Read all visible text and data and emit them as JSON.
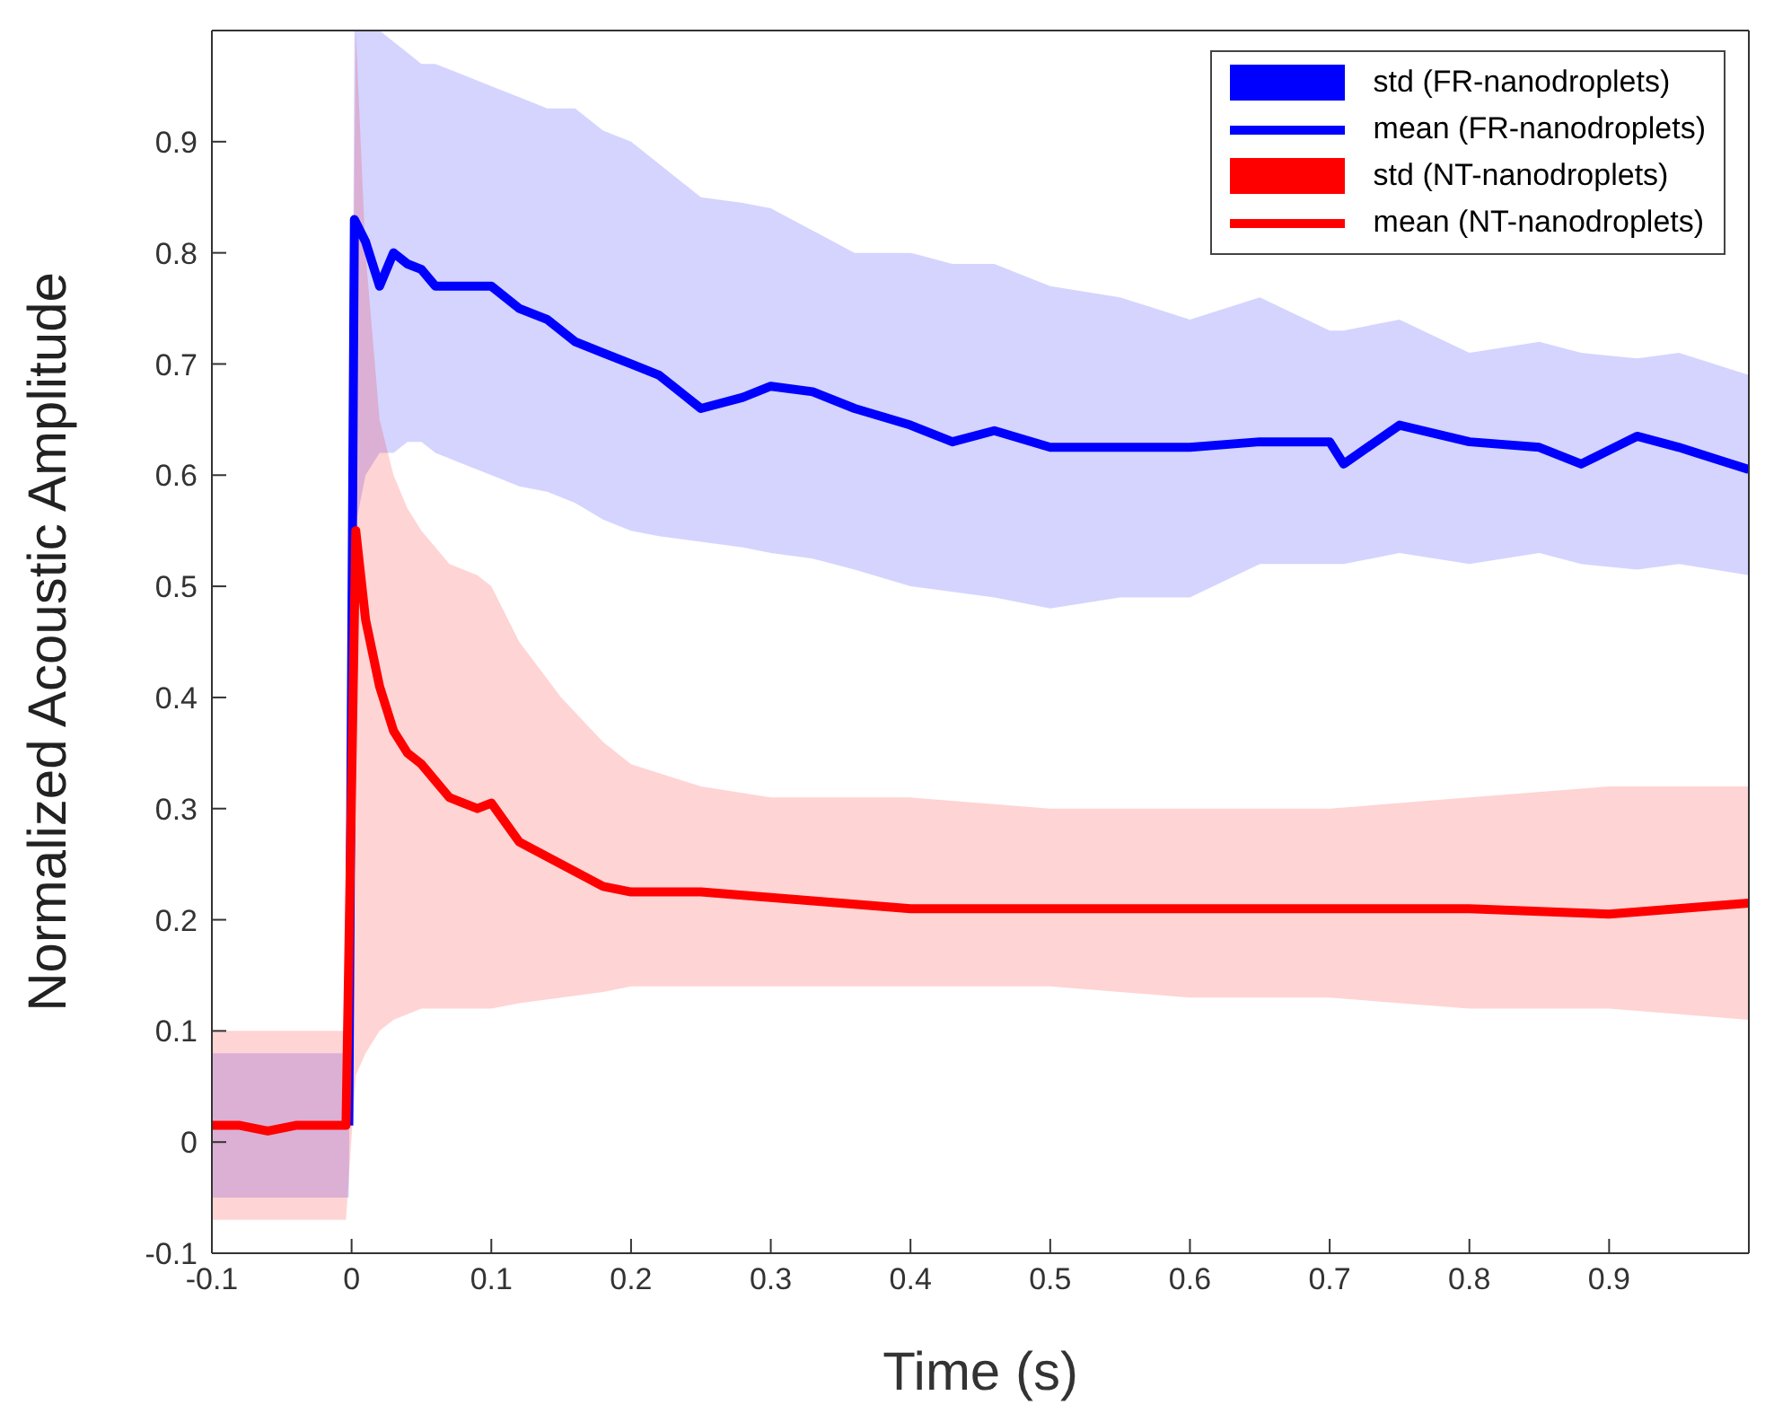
{
  "chart_data": {
    "type": "line",
    "xlabel": "Time (s)",
    "ylabel": "Normalized Acoustic Amplitude",
    "annotations": [
      "std (FR-nanodroplets)",
      "std (NT-nanodroplets)"
    ],
    "xlim": [
      -0.1,
      1.0
    ],
    "xticks": [
      -0.1,
      0,
      0.1,
      0.2,
      0.3,
      0.4,
      0.5,
      0.6,
      0.7,
      0.8,
      0.9
    ],
    "ylim": [
      -0.1,
      1.0
    ],
    "yticks": [
      -0.1,
      0,
      0.1,
      0.2,
      0.3,
      0.4,
      0.5,
      0.6,
      0.7,
      0.8,
      0.9
    ],
    "legend": "top right",
    "series": [
      {
        "name": "mean (FR-nanodroplets)",
        "color": "#0000ff",
        "x": [
          -0.1,
          -0.08,
          -0.06,
          -0.04,
          -0.02,
          -0.002,
          0.002,
          0.01,
          0.02,
          0.03,
          0.04,
          0.05,
          0.06,
          0.08,
          0.1,
          0.12,
          0.14,
          0.16,
          0.18,
          0.2,
          0.22,
          0.25,
          0.28,
          0.3,
          0.33,
          0.36,
          0.4,
          0.43,
          0.46,
          0.5,
          0.55,
          0.6,
          0.65,
          0.7,
          0.71,
          0.75,
          0.8,
          0.85,
          0.88,
          0.92,
          0.95,
          1.0
        ],
        "values": [
          null,
          null,
          null,
          null,
          null,
          0.015,
          0.83,
          0.81,
          0.77,
          0.8,
          0.79,
          0.785,
          0.77,
          0.77,
          0.77,
          0.75,
          0.74,
          0.72,
          0.71,
          0.7,
          0.69,
          0.66,
          0.67,
          0.68,
          0.675,
          0.66,
          0.645,
          0.63,
          0.64,
          0.625,
          0.625,
          0.625,
          0.63,
          0.63,
          0.61,
          0.645,
          0.63,
          0.625,
          0.61,
          0.635,
          0.625,
          0.605
        ],
        "lower": [
          -0.05,
          -0.05,
          -0.05,
          -0.05,
          -0.05,
          -0.05,
          0.55,
          0.6,
          0.62,
          0.62,
          0.63,
          0.63,
          0.62,
          0.61,
          0.6,
          0.59,
          0.585,
          0.575,
          0.56,
          0.55,
          0.545,
          0.54,
          0.535,
          0.53,
          0.525,
          0.515,
          0.5,
          0.495,
          0.49,
          0.48,
          0.49,
          0.49,
          0.52,
          0.52,
          0.52,
          0.53,
          0.52,
          0.53,
          0.52,
          0.515,
          0.52,
          0.51
        ],
        "upper": [
          0.08,
          0.08,
          0.08,
          0.08,
          0.08,
          0.08,
          1.0,
          1.0,
          1.0,
          0.99,
          0.98,
          0.97,
          0.97,
          0.96,
          0.95,
          0.94,
          0.93,
          0.93,
          0.91,
          0.9,
          0.88,
          0.85,
          0.845,
          0.84,
          0.82,
          0.8,
          0.8,
          0.79,
          0.79,
          0.77,
          0.76,
          0.74,
          0.76,
          0.73,
          0.73,
          0.74,
          0.71,
          0.72,
          0.71,
          0.705,
          0.71,
          0.69
        ]
      },
      {
        "name": "mean (NT-nanodroplets)",
        "color": "#ff0000",
        "x": [
          -0.1,
          -0.08,
          -0.06,
          -0.04,
          -0.02,
          -0.004,
          0.003,
          0.01,
          0.02,
          0.03,
          0.04,
          0.05,
          0.07,
          0.09,
          0.1,
          0.12,
          0.15,
          0.18,
          0.2,
          0.25,
          0.3,
          0.4,
          0.5,
          0.6,
          0.7,
          0.8,
          0.9,
          1.0
        ],
        "values": [
          0.015,
          0.015,
          0.01,
          0.015,
          0.015,
          0.015,
          0.55,
          0.47,
          0.41,
          0.37,
          0.35,
          0.34,
          0.31,
          0.3,
          0.305,
          0.27,
          0.25,
          0.23,
          0.225,
          0.225,
          0.22,
          0.21,
          0.21,
          0.21,
          0.21,
          0.21,
          0.205,
          0.215
        ],
        "lower": [
          -0.07,
          -0.07,
          -0.07,
          -0.07,
          -0.07,
          -0.07,
          0.06,
          0.08,
          0.1,
          0.11,
          0.115,
          0.12,
          0.12,
          0.12,
          0.12,
          0.125,
          0.13,
          0.135,
          0.14,
          0.14,
          0.14,
          0.14,
          0.14,
          0.13,
          0.13,
          0.12,
          0.12,
          0.11
        ],
        "upper": [
          0.1,
          0.1,
          0.1,
          0.1,
          0.1,
          0.1,
          1.0,
          0.8,
          0.65,
          0.6,
          0.57,
          0.55,
          0.52,
          0.51,
          0.5,
          0.45,
          0.4,
          0.36,
          0.34,
          0.32,
          0.31,
          0.31,
          0.3,
          0.3,
          0.3,
          0.31,
          0.32,
          0.32
        ]
      }
    ]
  }
}
